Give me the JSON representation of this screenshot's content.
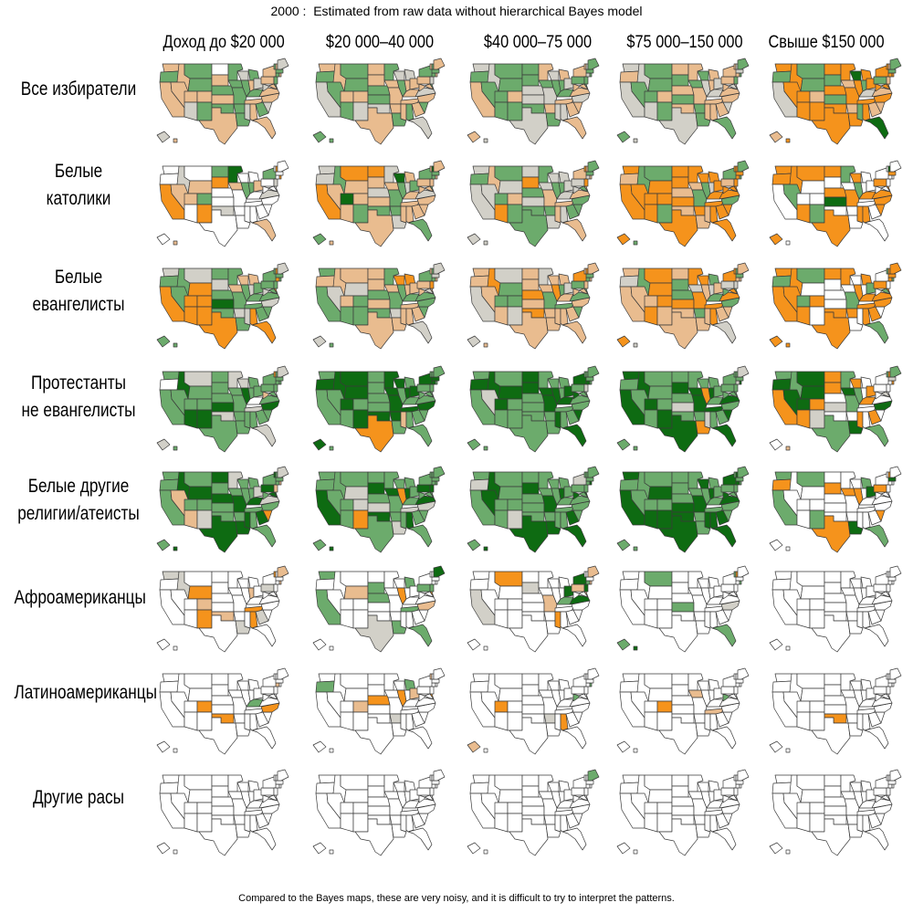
{
  "title": "2000 :  Estimated from raw data without hierarchical Bayes model",
  "footnote": "Compared to the Bayes maps, these are very noisy, and it is difficult to try to interpret the patterns.",
  "columns": [
    "Доход до $20 000",
    "$20 000–40 000",
    "$40 000–75 000",
    "$75 000–150 000",
    "Свыше $150 000"
  ],
  "rows": [
    {
      "label": [
        "Все избиратели"
      ],
      "maps": [
        "pgpppggptpgmpgpgpgggggtggptgptpgptpptpppgggpggpttp",
        "pgtpgggpgptppggtpgpppgtgtpppppgptgptppgpgtgpgpgpgg",
        "tgptgggggpgggttgtpgtpgtgpgtgpttppptppgppggtggptgpt",
        "tpttggggtpgpgpgptpgpgggtppttppppgtpppppttgpgtptggt",
        "OgtOOggOOpOOgOgOOOpOpODOOgOtOgOpDpOpOgOOOpOOgOpgpO"
      ]
    },
    {
      "label": [
        "Белые",
        "католики"
      ],
      "maps": [
        "wwOtpwppwgOgOwwtwDpwwwwgwgpwwwwwpwwtwwgwwtwOwwOwwp",
        "ttOgpOpDppgOptpgptpggtDgptgpppppgpptppgpgpgpgpDpgp",
        "tgtptgtgOpgtOgtgggtpgttgtgttpptgpggpttpgpOtpgOpgtt",
        "OpOgOgOOOOgOOpOpOOpgOpOgOtOOOpOOOOgOOpgOOOOgOOOgOg",
        "OOwOgOwwOwgOwODwOgwOwwOgwwwOwOOwwOOOwOwwOwwwOwDwOw"
      ]
    },
    {
      "label": [
        "Белые",
        "евангелисты"
      ],
      "maps": [
        "tgOggtOOOOOgtgDgOgpgtgpgptgggtOgOgtgtgggOgOgggOtgg",
        "gpgptptpgggppgpgpgpgtpOgOppgpppptgggppgtpOgptpgttg",
        "pptOptggpgtppOpOptpgpppOpgtpgppppgpgpgOpgpgpgpOptp",
        "ptpgpOOpOOppggOppOtOgpOpgtpgOpOptpgOgtOOgtppgOgpOt",
        "OgOOOgwgOOwOwwwOOOwgOwwOOwgOOwOOgwOOwOwgOwOgOgOOOO"
      ]
    },
    {
      "label": [
        "Протестанты",
        "не  евангелисты"
      ],
      "maps": [
        "gwgDgtggDgDgggDtgtggggtDgggwtgggtgDgpgggwggggOgttg",
        "gDgDgDDDggDggggDODDDDgDggDDgDpggggDgggDgggDgDgggDg",
        "gDgDtgDDgggDDgggggDDgggDggDDgDggDDggDgDggtDggggggg",
        "DgDDgggDggDgDgtgDgDDgOgOgDggDtggDDgDggggggtDgggtgg",
        "gDOgDDDDOOtOOwtwggDgwDOgwwOOwOwOgwDwwwwtwwwOtgOgwp"
      ]
    },
    {
      "label": [
        "Белые другие",
        "религии/атеисты"
      ],
      "maps": [
        "gggDpgDgpgtDgDggDtgDgDggggtDgDgDgOgtgDgDDpgpgDgtgD",
        "ggDgggtggtOgDgtDggDggtgOgDggtgDgggtDgDgggDgggggggD",
        "gtgDDgggggtgDgggDggDgDgggDgggggDDgggDgtgDggDgggggD",
        "DgDgggDgDgDgggDDDggDggDggDgggDDDDggDDgDgggDgggDggg",
        "gOgwwgwwwwgwOwwwOwOwwDwOgwDwwwwwgOwwwOwwwwwwDwOwww"
      ]
    },
    {
      "label": [
        "Афроамериканцы"
      ],
      "maps": [
        "twwtwwOwwpOwwwwpwwwwwtwwwpwwOwOtwwwwwtwwwwwpwOwpww",
        "gwgwwwpwwwwwggwwtwwwwgwOgwwwgwwwgwpwwgwwOgwwwwwDww",
        "wwtwwOwwwwwwtwwwwwwpwwwwwwDgwOwwwwwDwpDwpDgpwwwpww",
        "wwwwwgwwwwwwwwgwwwwwwwwwwwwwwwwwgwtwwwwwwwwgwgOwgD",
        "wwwwwwwwwwwwwwwwwwwwwwwwwwwwwwwwwwwwwwwwwwwwwwwwww"
      ]
    },
    {
      "label": [
        "Латиноамериканцы"
      ],
      "maps": [
        "wwwwwwwwwOwwwwwOwwwwwwwwwwwgwwwwwwOwwwwwwwpwwwwwww",
        "wgwwwwwwwpwwwOwwwwwwtwwOgwpwwwwwwwwwwwwwOwwwwpwwww",
        "wwwwwwwOwwwwwwwwwwwwtwwwwwwwwwOwwwwwgwwwwwwgwwwwpw",
        "wwwwwwwwwOwwwwwwwwpwwwwwwwwwpwwwwwwwgwwwwwwwwwwwww",
        "wwwwwwwwwwwwwwwOwwwwwwwwwwwwwwwwwwwwwwwwwwwwwwwwww"
      ]
    },
    {
      "label": [
        "Другие расы"
      ],
      "maps": [
        "wwwwwwwwwwwwwwwwwwwwwwwwwwwwwwwwwwwwwwwwwwwwwwwwww",
        "wwwwwwwwwwwwwwwwwwwwwwwwwwwwwwwwwwwwwwwwwwwwwwwwww",
        "wwwwwwwwwwwwwwwwwwwwwwwwwwwwwwwwwwwwwwwwwwwwwwwgww",
        "wwwwwwwwwwwwwwwwwwwwwwwwwwwwwwwwwwwwwwwwwwwwwwwwww",
        "wwwwwwwwwwwwwwwwwwwwwwwwwwwwwwwwwwwwwwwwwwwwwwwwww"
      ]
    }
  ],
  "fill_codes": {
    "D": "#0e6b12",
    "g": "#6cab6c",
    "t": "#d2d0c8",
    "p": "#e9bc8f",
    "O": "#f5931c",
    "w": "#ffffff"
  },
  "colors": {
    "state_border": "#3a3a3a",
    "background": "#ffffff"
  }
}
